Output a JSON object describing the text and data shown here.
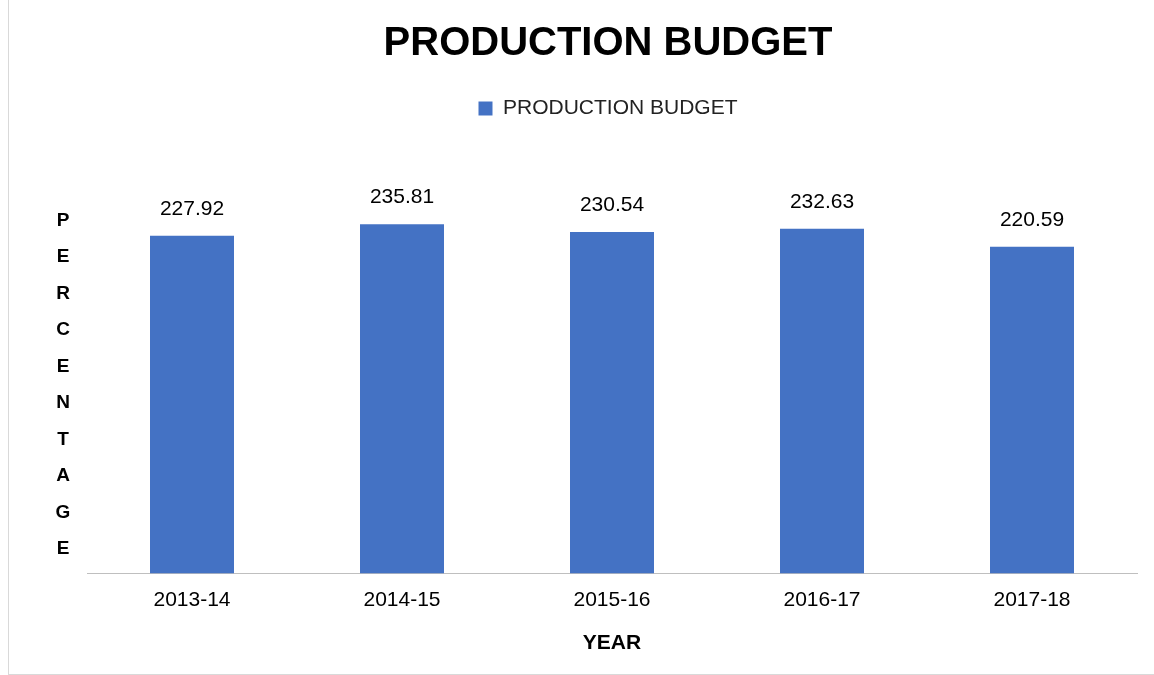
{
  "chart_data": {
    "type": "bar",
    "title": "PRODUCTION BUDGET",
    "xlabel": "YEAR",
    "ylabel": "PERCENTAGE",
    "categories": [
      "2013-14",
      "2014-15",
      "2015-16",
      "2016-17",
      "2017-18"
    ],
    "series": [
      {
        "name": "PRODUCTION BUDGET",
        "color": "#4472c4",
        "values": [
          227.92,
          235.81,
          230.54,
          232.63,
          220.59
        ]
      }
    ],
    "tick_labels": "x",
    "grid": false,
    "legend": "top",
    "data_labels": true
  }
}
